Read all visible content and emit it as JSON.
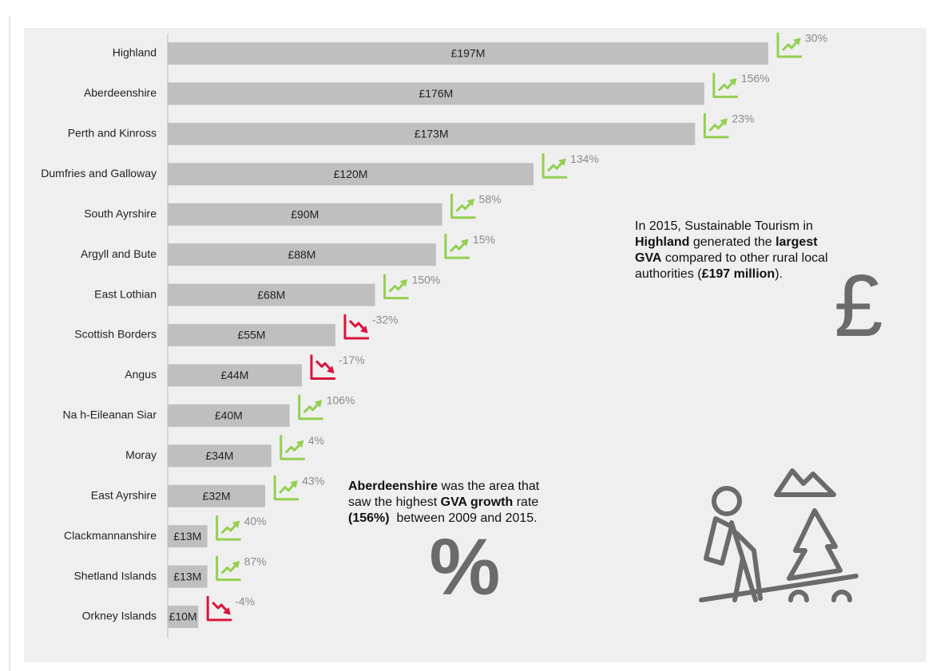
{
  "chart_data": {
    "type": "hbar",
    "categories": [
      "Highland",
      "Aberdeenshire",
      "Perth and Kinross",
      "Dumfries and Galloway",
      "South Ayrshire",
      "Argyll and Bute",
      "East Lothian",
      "Scottish Borders",
      "Angus",
      "Na h-Eileanan Siar",
      "Moray",
      "East Ayrshire",
      "Clackmannanshire",
      "Shetland Islands",
      "Orkney Islands"
    ],
    "values": [
      197,
      176,
      173,
      120,
      90,
      88,
      68,
      55,
      44,
      40,
      34,
      32,
      13,
      13,
      10
    ],
    "value_labels": [
      "£197M",
      "£176M",
      "£173M",
      "£120M",
      "£90M",
      "£88M",
      "£68M",
      "£55M",
      "£44M",
      "£40M",
      "£34M",
      "£32M",
      "£13M",
      "£13M",
      "£10M"
    ],
    "color": "#bfbfbf",
    "growth": {
      "values": [
        30,
        156,
        23,
        134,
        58,
        15,
        150,
        -32,
        -17,
        106,
        4,
        43,
        40,
        87,
        -4
      ],
      "value_labels": [
        "30%",
        "156%",
        "23%",
        "134%",
        "58%",
        "15%",
        "150%",
        "-32%",
        "-17%",
        "106%",
        "4%",
        "43%",
        "40%",
        "87%",
        "-4%"
      ],
      "up_color": "#92d050",
      "down_color": "#d9143a"
    },
    "annotations": [
      {
        "symbol": "£",
        "lines": [
          [
            {
              "text": "In 2015, Sustainable Tourism in",
              "bold": false
            }
          ],
          [
            {
              "text": "Highland",
              "bold": true
            },
            {
              "text": " generated the ",
              "bold": false
            },
            {
              "text": "largest",
              "bold": true
            }
          ],
          [
            {
              "text": "GVA",
              "bold": true
            },
            {
              "text": " compared to other rural local",
              "bold": false
            }
          ],
          [
            {
              "text": "authorities (",
              "bold": false
            },
            {
              "text": "£197 million",
              "bold": true
            },
            {
              "text": ").",
              "bold": false
            }
          ]
        ]
      },
      {
        "symbol": "%",
        "lines": [
          [
            {
              "text": "Aberdeenshire",
              "bold": true
            },
            {
              "text": " was the area that",
              "bold": false
            }
          ],
          [
            {
              "text": "saw the highest ",
              "bold": false
            },
            {
              "text": "GVA growth",
              "bold": true
            },
            {
              "text": " rate",
              "bold": false
            }
          ],
          [
            {
              "text": "(156%)",
              "bold": true
            },
            {
              "text": "  between 2009 and 2015.",
              "bold": false
            }
          ]
        ]
      }
    ]
  }
}
